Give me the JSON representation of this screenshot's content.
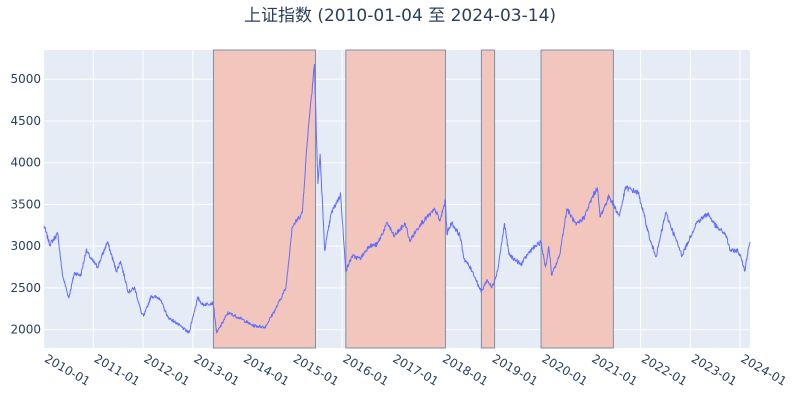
{
  "chart_data": {
    "type": "line",
    "title": "上证指数 (2010-01-04 至 2024-03-14)",
    "xlabel": "",
    "ylabel": "",
    "x_range": [
      "2010-01-04",
      "2024-03-14"
    ],
    "ylim": [
      1780,
      5350
    ],
    "grid": true,
    "legend": "none",
    "x_ticks": [
      "2010-01",
      "2011-01",
      "2012-01",
      "2013-01",
      "2014-01",
      "2015-01",
      "2016-01",
      "2017-01",
      "2018-01",
      "2019-01",
      "2020-01",
      "2021-01",
      "2022-01",
      "2023-01",
      "2024-01"
    ],
    "y_ticks": [
      2000,
      2500,
      3000,
      3500,
      4000,
      4500,
      5000
    ],
    "series": [
      {
        "color": "#636efa",
        "x": [
          "2010-01-04",
          "2010-02-15",
          "2010-04-15",
          "2010-05-20",
          "2010-07-05",
          "2010-08-15",
          "2010-10-01",
          "2010-11-10",
          "2010-12-15",
          "2011-02-01",
          "2011-04-15",
          "2011-06-20",
          "2011-07-20",
          "2011-09-15",
          "2011-11-01",
          "2011-12-20",
          "2012-01-06",
          "2012-03-01",
          "2012-05-01",
          "2012-07-01",
          "2012-09-01",
          "2012-12-03",
          "2013-02-05",
          "2013-03-15",
          "2013-05-29",
          "2013-06-25",
          "2013-09-15",
          "2013-12-01",
          "2014-03-15",
          "2014-06-15",
          "2014-09-01",
          "2014-11-15",
          "2014-12-31",
          "2015-03-15",
          "2015-04-27",
          "2015-06-12",
          "2015-07-08",
          "2015-07-24",
          "2015-08-26",
          "2015-10-15",
          "2015-12-22",
          "2016-01-28",
          "2016-03-15",
          "2016-05-15",
          "2016-07-15",
          "2016-09-15",
          "2016-11-29",
          "2017-01-16",
          "2017-04-10",
          "2017-05-11",
          "2017-08-01",
          "2017-11-14",
          "2017-12-20",
          "2018-01-29",
          "2018-02-09",
          "2018-03-15",
          "2018-05-15",
          "2018-06-15",
          "2018-08-15",
          "2018-10-19",
          "2018-12-01",
          "2019-01-04",
          "2019-02-15",
          "2019-04-08",
          "2019-05-10",
          "2019-08-06",
          "2019-10-15",
          "2019-12-31",
          "2020-02-03",
          "2020-02-28",
          "2020-03-19",
          "2020-05-15",
          "2020-07-09",
          "2020-09-15",
          "2020-11-15",
          "2021-01-15",
          "2021-02-18",
          "2021-03-09",
          "2021-05-15",
          "2021-07-28",
          "2021-09-13",
          "2021-12-15",
          "2022-01-28",
          "2022-03-15",
          "2022-04-26",
          "2022-07-04",
          "2022-10-31",
          "2022-12-15",
          "2023-02-15",
          "2023-05-09",
          "2023-07-15",
          "2023-09-15",
          "2023-10-23",
          "2023-12-15",
          "2024-01-15",
          "2024-02-05",
          "2024-02-28",
          "2024-03-14"
        ],
        "y": [
          3243,
          3020,
          3150,
          2650,
          2380,
          2680,
          2650,
          2950,
          2850,
          2750,
          3050,
          2700,
          2820,
          2450,
          2500,
          2200,
          2160,
          2400,
          2380,
          2150,
          2080,
          1960,
          2380,
          2300,
          2320,
          1960,
          2200,
          2150,
          2050,
          2030,
          2250,
          2500,
          3230,
          3400,
          4400,
          5178,
          3750,
          4100,
          2950,
          3400,
          3620,
          2700,
          2880,
          2850,
          3000,
          3020,
          3280,
          3120,
          3270,
          3060,
          3270,
          3440,
          3300,
          3550,
          3150,
          3280,
          3130,
          2850,
          2700,
          2450,
          2600,
          2500,
          2700,
          3270,
          2900,
          2780,
          2950,
          3050,
          2750,
          2990,
          2650,
          2880,
          3450,
          3250,
          3350,
          3600,
          3700,
          3350,
          3600,
          3360,
          3700,
          3640,
          3360,
          3050,
          2880,
          3400,
          2890,
          3050,
          3280,
          3390,
          3220,
          3150,
          2940,
          2950,
          2830,
          2700,
          2950,
          3050
        ]
      }
    ],
    "highlight_periods": [
      {
        "start": "2013-06-01",
        "end": "2015-06-20"
      },
      {
        "start": "2016-01-29",
        "end": "2018-01-29"
      },
      {
        "start": "2018-10-20",
        "end": "2019-01-25"
      },
      {
        "start": "2020-01-01",
        "end": "2021-06-15"
      }
    ],
    "highlight_color": "#f2c4b8",
    "plot_bg": "#e5ecf6",
    "grid_color": "#ffffff",
    "text_color": "#2a3f5f"
  }
}
